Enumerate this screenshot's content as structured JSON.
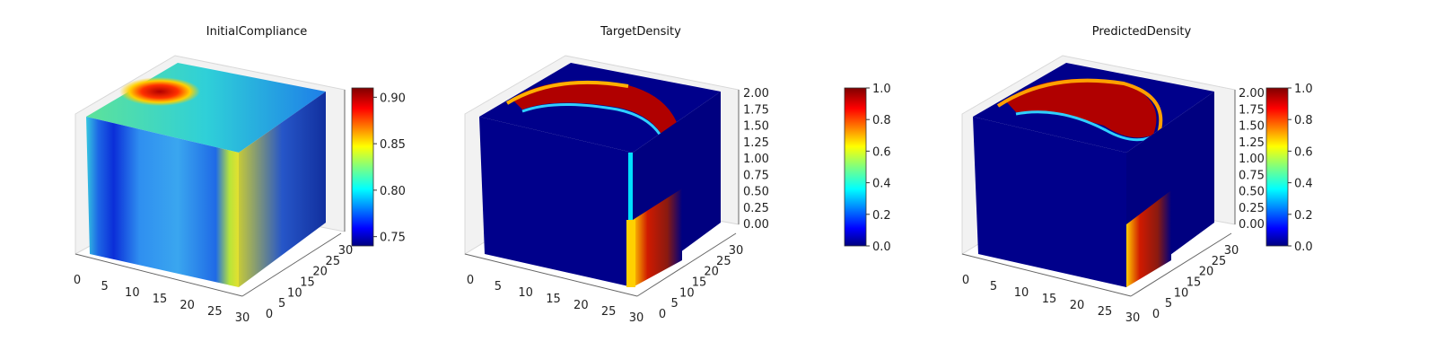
{
  "chart_data": [
    {
      "type": "voxel-3d",
      "title": "InitialCompliance",
      "x_ticks": [
        0,
        5,
        10,
        15,
        20,
        25,
        30
      ],
      "y_ticks": [
        0,
        5,
        10,
        15,
        20,
        25,
        30
      ],
      "z_ticks": [
        "",
        "",
        "",
        "",
        "",
        "",
        "",
        "",
        ""
      ],
      "colorbar": {
        "min": 0.74,
        "max": 0.91,
        "ticks": [
          "0.75",
          "0.80",
          "0.85",
          "0.90"
        ],
        "colormap": "jet"
      },
      "face_colors": {
        "top": "#3ed7c4",
        "front": "#2aa7e6",
        "side": "#6c9a55"
      }
    },
    {
      "type": "voxel-3d",
      "title": "TargetDensity",
      "x_ticks": [
        0,
        5,
        10,
        15,
        20,
        25,
        30
      ],
      "y_ticks": [
        0,
        5,
        10,
        15,
        20,
        25,
        30
      ],
      "z_ticks": [
        "0.00",
        "0.25",
        "0.50",
        "0.75",
        "1.00",
        "1.25",
        "1.50",
        "1.75",
        "2.00"
      ],
      "colorbar": {
        "min": 0.0,
        "max": 1.0,
        "ticks": [
          "0.0",
          "0.2",
          "0.4",
          "0.6",
          "0.8",
          "1.0"
        ],
        "colormap": "jet"
      },
      "face_colors": {
        "top": "#00008b",
        "front": "#00008b",
        "side": "#000080"
      }
    },
    {
      "type": "voxel-3d",
      "title": "PredictedDensity",
      "x_ticks": [
        0,
        5,
        10,
        15,
        20,
        25,
        30
      ],
      "y_ticks": [
        0,
        5,
        10,
        15,
        20,
        25,
        30
      ],
      "z_ticks": [
        "0.00",
        "0.25",
        "0.50",
        "0.75",
        "1.00",
        "1.25",
        "1.50",
        "1.75",
        "2.00"
      ],
      "colorbar": {
        "min": 0.0,
        "max": 1.0,
        "ticks": [
          "0.0",
          "0.2",
          "0.4",
          "0.6",
          "0.8",
          "1.0"
        ],
        "colormap": "jet"
      },
      "face_colors": {
        "top": "#00008b",
        "front": "#00008b",
        "side": "#000080"
      }
    }
  ],
  "colors": {
    "jet": [
      "#00007f",
      "#0000ff",
      "#007fff",
      "#00ffff",
      "#7fff7f",
      "#ffff00",
      "#ff7f00",
      "#ff0000",
      "#7f0000"
    ]
  }
}
